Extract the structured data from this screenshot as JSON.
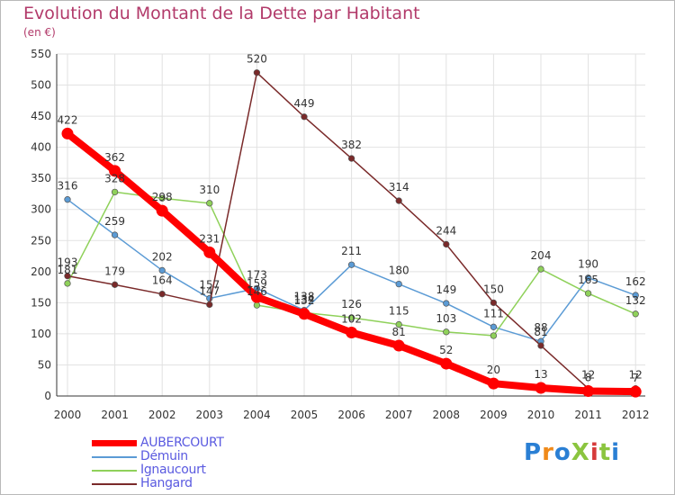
{
  "page": {
    "title": "Evolution du Montant de la Dette par Habitant",
    "subtitle": "(en €)",
    "brand": "ProXiti",
    "brand_colors": [
      "#2a7fd4",
      "#f08a1a",
      "#2a7fd4",
      "#8bc53f",
      "#d63b3b",
      "#8bc53f",
      "#2a7fd4"
    ]
  },
  "chart_data": {
    "type": "line",
    "title": "Evolution du Montant de la Dette par Habitant",
    "ylabel": "(en €)",
    "xlabel": "",
    "x": [
      "2000",
      "2001",
      "2002",
      "2003",
      "2004",
      "2005",
      "2006",
      "2007",
      "2008",
      "2009",
      "2010",
      "2011",
      "2012"
    ],
    "ylim": [
      0,
      550
    ],
    "yticks": [
      "0",
      "50",
      "100",
      "150",
      "200",
      "250",
      "300",
      "350",
      "400",
      "450",
      "500",
      "550"
    ],
    "grid": true,
    "legend_position": "bottom-left",
    "series": [
      {
        "name": "AUBERCOURT",
        "color": "#ff0000",
        "emphasis": true,
        "values": [
          422,
          362,
          298,
          231,
          159,
          132,
          102,
          81,
          52,
          20,
          13,
          8,
          7
        ],
        "labels": [
          "422",
          "362",
          "298",
          "231",
          "159",
          "132",
          "102",
          "81",
          "52",
          "20",
          "13",
          "8",
          "7"
        ]
      },
      {
        "name": "Démuin",
        "color": "#5b9bd5",
        "emphasis": false,
        "values": [
          316,
          259,
          202,
          157,
          173,
          138,
          211,
          180,
          149,
          111,
          88,
          190,
          162
        ],
        "labels": [
          "316",
          "259",
          "202",
          "157",
          "173",
          "138",
          "211",
          "180",
          "149",
          "111",
          "88",
          "190",
          "162"
        ]
      },
      {
        "name": "Ignaucourt",
        "color": "#8fd15a",
        "emphasis": false,
        "values": [
          181,
          328,
          318,
          310,
          146,
          134,
          126,
          115,
          103,
          97,
          204,
          165,
          132
        ],
        "labels": [
          "181",
          "328",
          "",
          "310",
          "146",
          "134",
          "126",
          "115",
          "103",
          "",
          "204",
          "165",
          "132"
        ]
      },
      {
        "name": "Hangard",
        "color": "#7a2a2a",
        "emphasis": false,
        "values": [
          193,
          179,
          164,
          147,
          520,
          449,
          382,
          314,
          244,
          150,
          81,
          12,
          12
        ],
        "labels": [
          "193",
          "179",
          "164",
          "147",
          "520",
          "449",
          "382",
          "314",
          "244",
          "150",
          "81",
          "12",
          "12"
        ]
      }
    ]
  }
}
